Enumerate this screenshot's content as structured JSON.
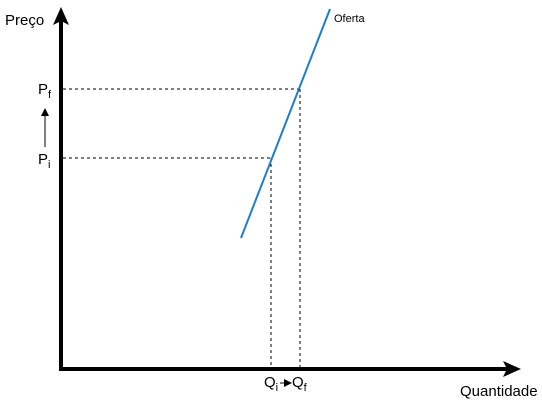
{
  "diagram": {
    "y_axis_label": "Preço",
    "x_axis_label": "Quantidade",
    "curve_label": "Oferta",
    "price_initial": {
      "main": "P",
      "sub": "i"
    },
    "price_final": {
      "main": "P",
      "sub": "f"
    },
    "quantity_initial": {
      "main": "Q",
      "sub": "i"
    },
    "quantity_final": {
      "main": "Q",
      "sub": "f"
    }
  },
  "colors": {
    "curve": "#1e7ec8",
    "axis": "#000000",
    "guides": "#000000"
  }
}
